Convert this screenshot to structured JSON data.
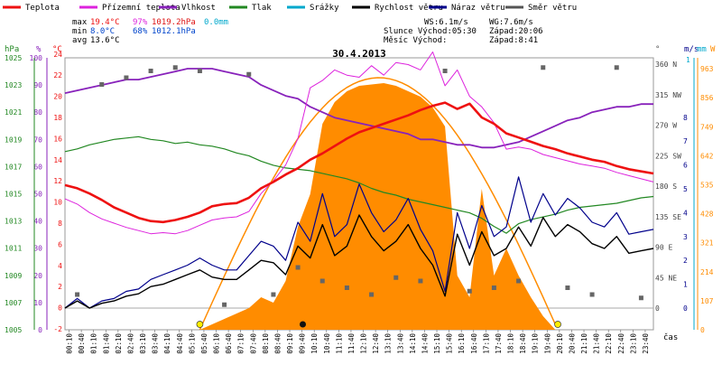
{
  "chart_data": {
    "type": "line",
    "title": "30.4.2013",
    "legend": [
      {
        "label": "Teplota",
        "color": "#ee1111"
      },
      {
        "label": "Přízemní teplota",
        "color": "#dd22dd"
      },
      {
        "label": "Vlhkost",
        "color": "#8822bb"
      },
      {
        "label": "Tlak",
        "color": "#228822"
      },
      {
        "label": "Srážky",
        "color": "#00a8cc"
      },
      {
        "label": "Rychlost větru",
        "color": "#000000"
      },
      {
        "label": "Náraz větru",
        "color": "#00008b"
      },
      {
        "label": "Směr větru",
        "color": "#555555"
      }
    ],
    "stats": {
      "max": {
        "label": "max",
        "temp": "19.4°C",
        "hum": "97%",
        "press": "1019.2hPa",
        "rain": "0.0mm"
      },
      "min": {
        "label": "min",
        "temp": "8.0°C",
        "hum": "68%",
        "press": "1012.1hPa"
      },
      "avg": {
        "label": "avg",
        "temp": "13.6°C"
      }
    },
    "info": {
      "ws": "WS:6.1m/s",
      "wg": "WG:7.6m/s",
      "sunrise": "Slunce Východ:05:30",
      "sunset": "Západ:20:06",
      "moonrise": "Měsíc  Východ:",
      "moonset": "Západ:8:41"
    },
    "axes": {
      "hpa_label": "hPa",
      "pct_label": "%",
      "c_label": "°C",
      "deg_label": "°",
      "ms_label": "m/s",
      "mm_label": "mm",
      "w_label": "W",
      "x_label": "čas",
      "hpa_ticks": [
        "1025",
        "1023",
        "1021",
        "1019",
        "1017",
        "1015",
        "1013",
        "1011",
        "1009",
        "1007",
        "1005"
      ],
      "pct_ticks": [
        "100",
        "90",
        "80",
        "70",
        "60",
        "50",
        "40",
        "30",
        "20",
        "10",
        "0"
      ],
      "c_ticks": [
        "24",
        "22",
        "20",
        "18",
        "16",
        "14",
        "12",
        "10",
        "8",
        "6",
        "4",
        "2",
        "0",
        "-2"
      ],
      "dir_ticks": [
        "360 N",
        "315 NW",
        "270 W",
        "225 SW",
        "180 S",
        "135 SE",
        "90 E",
        "45 NE",
        "0"
      ],
      "ms_ticks": [
        "8",
        "7",
        "6",
        "5",
        "4",
        "3",
        "2",
        "1",
        "0"
      ],
      "mm_ticks": [
        "1"
      ],
      "w_ticks": [
        "963",
        "856",
        "749",
        "642",
        "535",
        "428",
        "321",
        "214",
        "107",
        "0"
      ],
      "time_ticks": [
        "00:10",
        "00:40",
        "01:10",
        "01:40",
        "02:10",
        "02:40",
        "03:10",
        "03:40",
        "04:10",
        "04:40",
        "05:10",
        "05:40",
        "06:10",
        "06:40",
        "07:10",
        "07:40",
        "08:10",
        "08:40",
        "09:10",
        "09:40",
        "10:10",
        "10:40",
        "11:10",
        "11:40",
        "12:10",
        "12:40",
        "13:10",
        "13:40",
        "14:10",
        "14:40",
        "15:10",
        "15:40",
        "16:10",
        "16:40",
        "17:10",
        "17:40",
        "18:10",
        "18:40",
        "19:10",
        "19:40",
        "20:10",
        "20:40",
        "21:10",
        "21:40",
        "22:10",
        "22:40",
        "23:10",
        "23:40"
      ]
    },
    "xlim": [
      0,
      24
    ],
    "series": [
      {
        "name": "Teplota",
        "unit": "°C",
        "x": [
          0,
          0.5,
          1,
          1.5,
          2,
          2.5,
          3,
          3.5,
          4,
          4.5,
          5,
          5.5,
          6,
          6.5,
          7,
          7.5,
          8,
          8.5,
          9,
          9.5,
          10,
          10.5,
          11,
          11.5,
          12,
          12.5,
          13,
          13.5,
          14,
          14.5,
          15,
          15.5,
          16,
          16.5,
          17,
          17.5,
          18,
          18.5,
          19,
          19.5,
          20,
          20.5,
          21,
          21.5,
          22,
          22.5,
          23,
          23.5,
          24
        ],
        "values": [
          11.6,
          11.3,
          10.8,
          10.2,
          9.5,
          9.0,
          8.5,
          8.2,
          8.1,
          8.3,
          8.6,
          9.0,
          9.6,
          9.8,
          9.9,
          10.4,
          11.3,
          11.9,
          12.6,
          13.2,
          14.0,
          14.6,
          15.3,
          16.0,
          16.6,
          17.0,
          17.4,
          17.8,
          18.2,
          18.7,
          19.1,
          19.4,
          18.8,
          19.3,
          18.0,
          17.4,
          16.5,
          16.1,
          15.7,
          15.3,
          15.0,
          14.6,
          14.3,
          14.0,
          13.8,
          13.4,
          13.1,
          12.9,
          12.7
        ]
      },
      {
        "name": "Přízemní teplota",
        "unit": "°C",
        "x": [
          0,
          0.5,
          1,
          1.5,
          2,
          2.5,
          3,
          3.5,
          4,
          4.5,
          5,
          5.5,
          6,
          6.5,
          7,
          7.5,
          8,
          8.5,
          9,
          9.5,
          10,
          10.5,
          11,
          11.5,
          12,
          12.5,
          13,
          13.5,
          14,
          14.5,
          15,
          15.5,
          16,
          16.5,
          17,
          17.5,
          18,
          18.5,
          19,
          19.5,
          20,
          20.5,
          21,
          21.5,
          22,
          22.5,
          23,
          23.5,
          24
        ],
        "values": [
          10.3,
          9.8,
          9.0,
          8.4,
          8.0,
          7.6,
          7.3,
          7.0,
          7.1,
          7.0,
          7.3,
          7.8,
          8.3,
          8.5,
          8.6,
          9.1,
          10.8,
          12.0,
          13.5,
          16.0,
          20.8,
          21.5,
          22.5,
          22.0,
          21.8,
          22.9,
          22.0,
          23.2,
          23.0,
          22.5,
          24.2,
          21.0,
          22.5,
          20.0,
          19.0,
          17.5,
          15.0,
          15.2,
          15.0,
          14.5,
          14.2,
          13.9,
          13.6,
          13.4,
          13.2,
          12.8,
          12.5,
          12.2,
          11.9
        ]
      },
      {
        "name": "Vlhkost",
        "unit": "%",
        "x": [
          0,
          0.5,
          1,
          1.5,
          2,
          2.5,
          3,
          3.5,
          4,
          4.5,
          5,
          5.5,
          6,
          6.5,
          7,
          7.5,
          8,
          8.5,
          9,
          9.5,
          10,
          10.5,
          11,
          11.5,
          12,
          12.5,
          13,
          13.5,
          14,
          14.5,
          15,
          15.5,
          16,
          16.5,
          17,
          17.5,
          18,
          18.5,
          19,
          19.5,
          20,
          20.5,
          21,
          21.5,
          22,
          22.5,
          23,
          23.5,
          24
        ],
        "values": [
          87,
          88,
          89,
          90,
          91,
          92,
          92,
          93,
          94,
          95,
          96,
          96,
          96,
          95,
          94,
          93,
          90,
          88,
          86,
          85,
          82,
          80,
          78,
          77,
          76,
          75,
          74,
          73,
          72,
          70,
          70,
          69,
          68,
          68,
          67,
          67,
          68,
          69,
          71,
          73,
          75,
          77,
          78,
          80,
          81,
          82,
          82,
          83,
          83
        ]
      },
      {
        "name": "Tlak",
        "unit": "hPa",
        "x": [
          0,
          0.5,
          1,
          1.5,
          2,
          2.5,
          3,
          3.5,
          4,
          4.5,
          5,
          5.5,
          6,
          6.5,
          7,
          7.5,
          8,
          8.5,
          9,
          9.5,
          10,
          10.5,
          11,
          11.5,
          12,
          12.5,
          13,
          13.5,
          14,
          14.5,
          15,
          15.5,
          16,
          16.5,
          17,
          17.5,
          18,
          18.5,
          19,
          19.5,
          20,
          20.5,
          21,
          21.5,
          22,
          22.5,
          23,
          23.5,
          24
        ],
        "values": [
          1018.1,
          1018.3,
          1018.6,
          1018.8,
          1019.0,
          1019.1,
          1019.2,
          1019.0,
          1018.9,
          1018.7,
          1018.8,
          1018.6,
          1018.5,
          1018.3,
          1018.0,
          1017.8,
          1017.4,
          1017.1,
          1016.9,
          1016.8,
          1016.7,
          1016.5,
          1016.3,
          1016.1,
          1015.8,
          1015.4,
          1015.1,
          1014.9,
          1014.6,
          1014.4,
          1014.2,
          1014.0,
          1013.8,
          1013.6,
          1013.2,
          1012.6,
          1012.1,
          1012.8,
          1013.1,
          1013.3,
          1013.5,
          1013.8,
          1014.0,
          1014.1,
          1014.2,
          1014.3,
          1014.5,
          1014.7,
          1014.8
        ]
      },
      {
        "name": "Rychlost větru",
        "unit": "m/s",
        "x": [
          0,
          0.5,
          1,
          1.5,
          2,
          2.5,
          3,
          3.5,
          4,
          4.5,
          5,
          5.5,
          6,
          6.5,
          7,
          7.5,
          8,
          8.5,
          9,
          9.5,
          10,
          10.5,
          11,
          11.5,
          12,
          12.5,
          13,
          13.5,
          14,
          14.5,
          15,
          15.5,
          16,
          16.5,
          17,
          17.5,
          18,
          18.5,
          19,
          19.5,
          20,
          20.5,
          21,
          21.5,
          22,
          22.5,
          23,
          23.5,
          24
        ],
        "values": [
          0.0,
          0.3,
          0.0,
          0.2,
          0.3,
          0.5,
          0.6,
          0.9,
          1.0,
          1.2,
          1.4,
          1.6,
          1.3,
          1.2,
          1.2,
          1.6,
          2.0,
          1.9,
          1.4,
          2.6,
          2.1,
          3.5,
          2.2,
          2.6,
          3.9,
          3.0,
          2.4,
          2.8,
          3.5,
          2.5,
          1.8,
          0.5,
          3.1,
          1.8,
          3.2,
          2.2,
          2.5,
          3.4,
          2.6,
          3.8,
          3.0,
          3.5,
          3.2,
          2.7,
          2.5,
          3.0,
          2.3,
          2.4,
          2.5
        ]
      },
      {
        "name": "Náraz větru",
        "unit": "m/s",
        "x": [
          0,
          0.5,
          1,
          1.5,
          2,
          2.5,
          3,
          3.5,
          4,
          4.5,
          5,
          5.5,
          6,
          6.5,
          7,
          7.5,
          8,
          8.5,
          9,
          9.5,
          10,
          10.5,
          11,
          11.5,
          12,
          12.5,
          13,
          13.5,
          14,
          14.5,
          15,
          15.5,
          16,
          16.5,
          17,
          17.5,
          18,
          18.5,
          19,
          19.5,
          20,
          20.5,
          21,
          21.5,
          22,
          22.5,
          23,
          23.5,
          24
        ],
        "values": [
          0.0,
          0.4,
          0.0,
          0.3,
          0.4,
          0.7,
          0.8,
          1.2,
          1.4,
          1.6,
          1.8,
          2.1,
          1.8,
          1.6,
          1.6,
          2.2,
          2.8,
          2.6,
          2.0,
          3.6,
          2.8,
          4.8,
          3.0,
          3.5,
          5.2,
          4.0,
          3.2,
          3.7,
          4.6,
          3.3,
          2.4,
          0.7,
          4.0,
          2.5,
          4.3,
          3.0,
          3.4,
          5.5,
          3.6,
          4.8,
          3.9,
          4.6,
          4.2,
          3.6,
          3.4,
          4.0,
          3.1,
          3.2,
          3.3
        ]
      },
      {
        "name": "Směr větru",
        "unit": "°",
        "x": [
          0.5,
          1.5,
          2.5,
          3.5,
          4.5,
          5.5,
          6.5,
          7.5,
          8.5,
          9.5,
          10.5,
          11.5,
          12.5,
          13.5,
          14.5,
          15.5,
          16.5,
          17.5,
          18.5,
          19.5,
          20.5,
          21.5,
          22.5,
          23.5
        ],
        "values": [
          20,
          330,
          340,
          350,
          355,
          350,
          5,
          345,
          20,
          60,
          40,
          30,
          20,
          45,
          40,
          350,
          25,
          30,
          40,
          355,
          30,
          20,
          355,
          15
        ]
      },
      {
        "name": "Sluneční záření",
        "unit": "W",
        "x": [
          5.5,
          6,
          6.5,
          7,
          7.5,
          8,
          8.5,
          9,
          9.5,
          10,
          10.5,
          11,
          11.5,
          12,
          12.5,
          13,
          13.5,
          14,
          14.5,
          15,
          15.5,
          16,
          16.5,
          17,
          17.5,
          18,
          18.5,
          19,
          19.5,
          20
        ],
        "values": [
          0,
          20,
          40,
          60,
          80,
          120,
          100,
          180,
          380,
          500,
          760,
          840,
          880,
          900,
          905,
          910,
          900,
          880,
          860,
          820,
          750,
          200,
          120,
          520,
          200,
          300,
          200,
          120,
          50,
          0
        ]
      }
    ]
  }
}
